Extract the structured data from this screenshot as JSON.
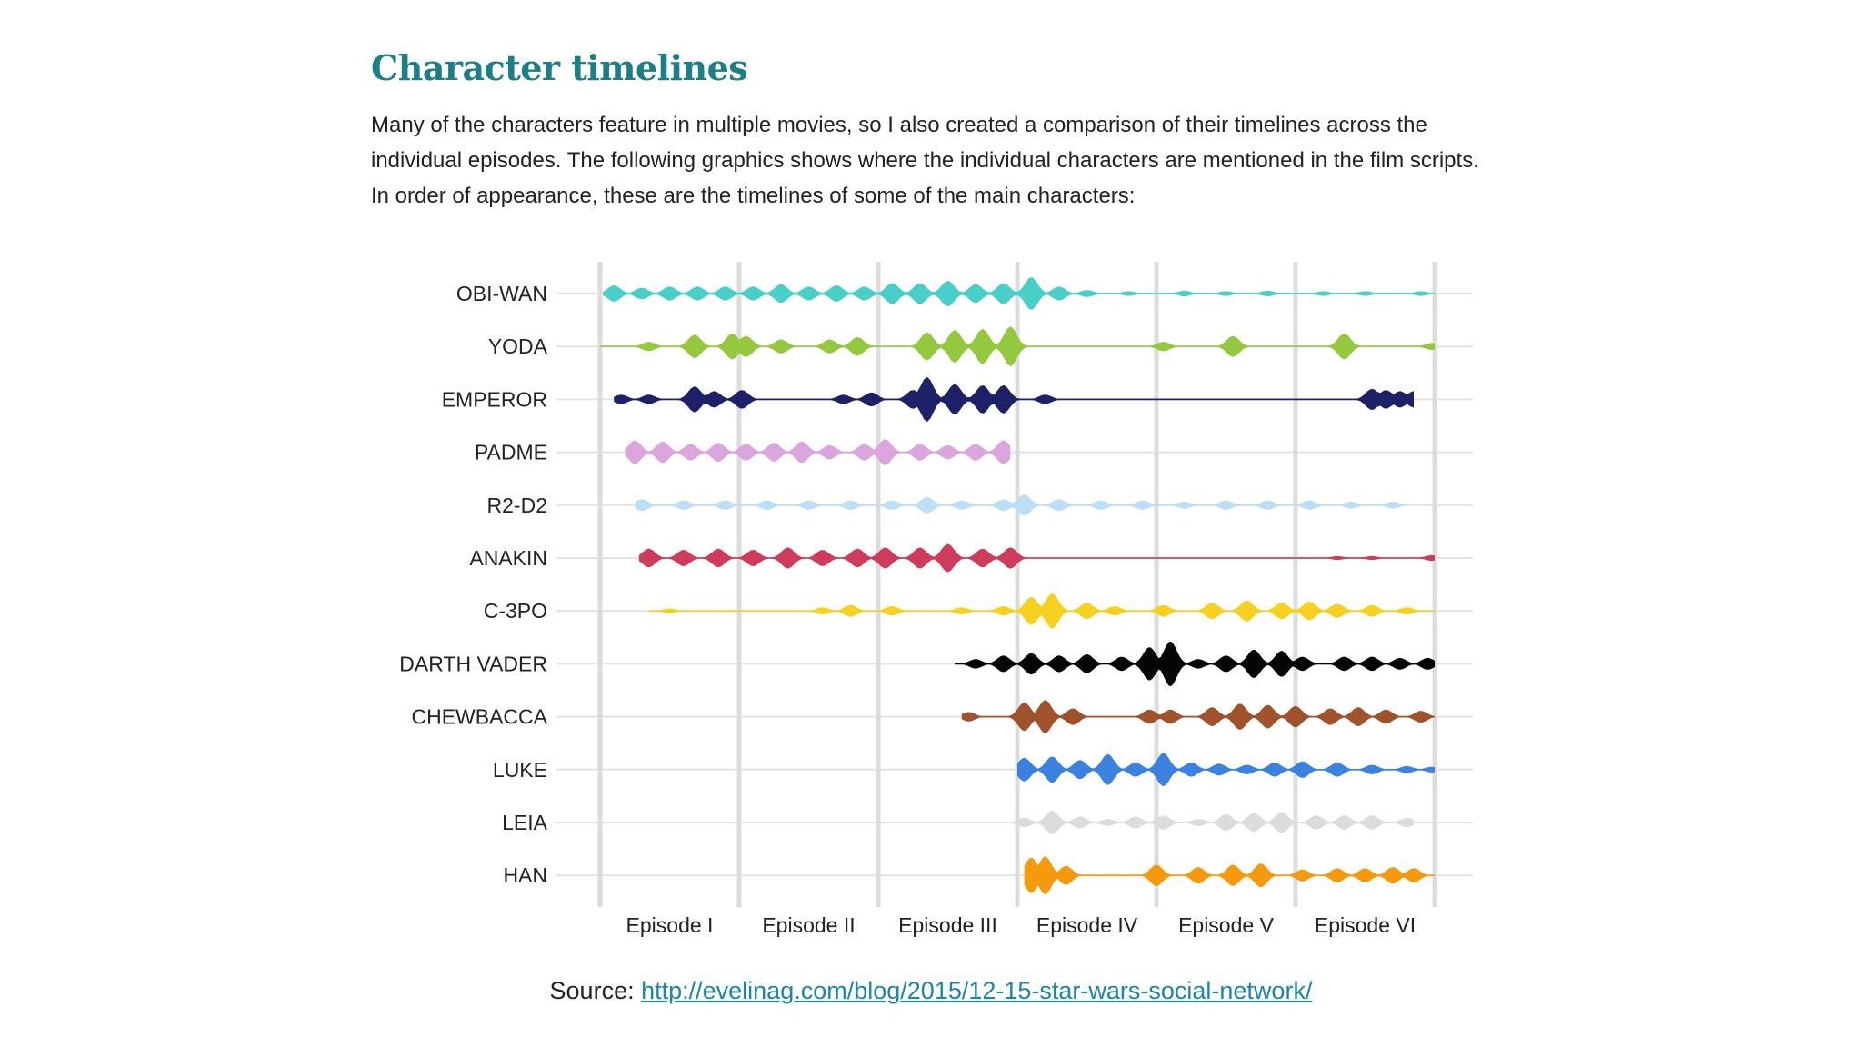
{
  "article": {
    "heading": "Character timelines",
    "intro_lines": [
      "Many of the characters feature in multiple movies, so I also created a comparison of their timelines across the",
      "individual episodes. The following graphics shows where the individual characters are mentioned in the film scripts.",
      "In order of appearance, these are the timelines of some of the main characters:"
    ]
  },
  "source": {
    "prefix": "Source: ",
    "link_text": "http://evelinag.com/blog/2015/12-15-star-wars-social-network/"
  },
  "chart_data": {
    "type": "violin-timeline",
    "title": "",
    "xlabel": "",
    "ylabel": "",
    "x_unit": "episode position (0 = start of Episode I, 6 = end of Episode VI)",
    "xlim": [
      0,
      6
    ],
    "episodes": [
      "Episode I",
      "Episode II",
      "Episode III",
      "Episode IV",
      "Episode V",
      "Episode VI"
    ],
    "grid": "vertical episode boundaries and horizontal character baselines",
    "series": [
      {
        "name": "OBI-WAN",
        "color": "#48cfc9",
        "start": 0.02,
        "end": 6.0,
        "x": [
          0.1,
          0.3,
          0.5,
          0.7,
          0.9,
          1.1,
          1.3,
          1.5,
          1.7,
          1.9,
          2.1,
          2.3,
          2.5,
          2.7,
          2.9,
          3.1,
          3.3,
          3.5,
          3.8,
          4.2,
          4.5,
          4.8,
          5.2,
          5.5,
          5.9
        ],
        "intensity": [
          0.35,
          0.25,
          0.3,
          0.3,
          0.3,
          0.3,
          0.4,
          0.3,
          0.35,
          0.3,
          0.45,
          0.45,
          0.55,
          0.4,
          0.45,
          0.7,
          0.3,
          0.15,
          0.1,
          0.12,
          0.1,
          0.12,
          0.1,
          0.1,
          0.1
        ]
      },
      {
        "name": "YODA",
        "color": "#94c93f",
        "start": 0.0,
        "end": 6.0,
        "x": [
          0.35,
          0.68,
          0.95,
          1.05,
          1.3,
          1.65,
          1.85,
          2.35,
          2.55,
          2.75,
          2.95,
          4.05,
          4.55,
          5.35,
          5.98
        ],
        "intensity": [
          0.2,
          0.5,
          0.55,
          0.45,
          0.3,
          0.3,
          0.4,
          0.6,
          0.7,
          0.75,
          0.85,
          0.2,
          0.45,
          0.55,
          0.15
        ]
      },
      {
        "name": "EMPEROR",
        "color": "#1e2068",
        "start": 0.1,
        "end": 5.85,
        "x": [
          0.15,
          0.35,
          0.68,
          0.82,
          1.02,
          1.75,
          1.95,
          2.25,
          2.35,
          2.55,
          2.75,
          2.9,
          3.2,
          5.55,
          5.65,
          5.75,
          5.85
        ],
        "intensity": [
          0.2,
          0.2,
          0.55,
          0.35,
          0.4,
          0.2,
          0.3,
          0.4,
          0.95,
          0.65,
          0.6,
          0.6,
          0.2,
          0.45,
          0.4,
          0.35,
          0.35
        ]
      },
      {
        "name": "PADME",
        "color": "#dba6de",
        "start": 0.18,
        "end": 2.95,
        "x": [
          0.25,
          0.45,
          0.65,
          0.85,
          1.05,
          1.25,
          1.45,
          1.65,
          1.9,
          2.05,
          2.3,
          2.5,
          2.7,
          2.9
        ],
        "intensity": [
          0.5,
          0.45,
          0.35,
          0.4,
          0.35,
          0.4,
          0.45,
          0.3,
          0.35,
          0.55,
          0.35,
          0.3,
          0.35,
          0.5
        ]
      },
      {
        "name": "R2-D2",
        "color": "#bddff5",
        "start": 0.25,
        "end": 5.8,
        "x": [
          0.3,
          0.6,
          0.9,
          1.2,
          1.5,
          1.8,
          2.1,
          2.35,
          2.6,
          2.9,
          3.05,
          3.3,
          3.6,
          3.9,
          4.2,
          4.5,
          4.8,
          5.1,
          5.4,
          5.7
        ],
        "intensity": [
          0.25,
          0.2,
          0.2,
          0.2,
          0.2,
          0.2,
          0.2,
          0.35,
          0.2,
          0.25,
          0.45,
          0.25,
          0.2,
          0.2,
          0.15,
          0.2,
          0.2,
          0.2,
          0.15,
          0.15
        ]
      },
      {
        "name": "ANAKIN",
        "color": "#cf3b5b",
        "start": 0.28,
        "end": 6.0,
        "x": [
          0.35,
          0.6,
          0.85,
          1.1,
          1.35,
          1.6,
          1.85,
          2.05,
          2.3,
          2.5,
          2.75,
          2.95,
          5.3,
          5.55,
          5.98
        ],
        "intensity": [
          0.4,
          0.35,
          0.4,
          0.35,
          0.45,
          0.35,
          0.4,
          0.45,
          0.45,
          0.6,
          0.4,
          0.45,
          0.08,
          0.08,
          0.12
        ]
      },
      {
        "name": "C-3PO",
        "color": "#f7d11f",
        "start": 0.35,
        "end": 6.0,
        "x": [
          0.5,
          1.6,
          1.8,
          2.1,
          2.6,
          2.9,
          3.1,
          3.25,
          3.5,
          3.7,
          4.05,
          4.4,
          4.65,
          4.9,
          5.1,
          5.3,
          5.55,
          5.8
        ],
        "intensity": [
          0.1,
          0.15,
          0.25,
          0.2,
          0.15,
          0.2,
          0.6,
          0.75,
          0.35,
          0.2,
          0.25,
          0.35,
          0.45,
          0.35,
          0.4,
          0.3,
          0.25,
          0.15
        ]
      },
      {
        "name": "DARTH VADER",
        "color": "#050505",
        "start": 2.55,
        "end": 6.0,
        "x": [
          2.7,
          2.9,
          3.1,
          3.3,
          3.5,
          3.75,
          3.95,
          4.1,
          4.3,
          4.5,
          4.7,
          4.9,
          5.05,
          5.35,
          5.55,
          5.75,
          5.95
        ],
        "intensity": [
          0.2,
          0.35,
          0.45,
          0.35,
          0.4,
          0.3,
          0.7,
          0.95,
          0.2,
          0.35,
          0.6,
          0.55,
          0.3,
          0.3,
          0.3,
          0.25,
          0.25
        ]
      },
      {
        "name": "CHEWBACCA",
        "color": "#a0522d",
        "start": 2.6,
        "end": 6.0,
        "x": [
          2.65,
          3.05,
          3.2,
          3.4,
          3.95,
          4.1,
          4.4,
          4.6,
          4.8,
          5.0,
          5.25,
          5.45,
          5.65,
          5.9
        ],
        "intensity": [
          0.2,
          0.6,
          0.7,
          0.35,
          0.3,
          0.3,
          0.4,
          0.55,
          0.5,
          0.45,
          0.35,
          0.4,
          0.3,
          0.25
        ]
      },
      {
        "name": "LUKE",
        "color": "#3b82e0",
        "start": 3.0,
        "end": 6.0,
        "x": [
          3.05,
          3.25,
          3.45,
          3.65,
          3.85,
          4.05,
          4.25,
          4.45,
          4.65,
          4.85,
          5.05,
          5.3,
          5.55,
          5.8,
          5.98
        ],
        "intensity": [
          0.5,
          0.55,
          0.4,
          0.65,
          0.3,
          0.7,
          0.3,
          0.25,
          0.2,
          0.3,
          0.35,
          0.3,
          0.2,
          0.15,
          0.12
        ]
      },
      {
        "name": "LEIA",
        "color": "#dcdcdc",
        "start": 2.95,
        "end": 5.85,
        "x": [
          3.05,
          3.25,
          3.45,
          3.65,
          3.85,
          4.05,
          4.3,
          4.5,
          4.7,
          4.9,
          5.15,
          5.35,
          5.55,
          5.8
        ],
        "intensity": [
          0.2,
          0.5,
          0.25,
          0.15,
          0.25,
          0.3,
          0.15,
          0.35,
          0.4,
          0.45,
          0.3,
          0.3,
          0.3,
          0.2
        ]
      },
      {
        "name": "HAN",
        "color": "#f59a0c",
        "start": 3.05,
        "end": 6.0,
        "x": [
          3.1,
          3.2,
          3.35,
          4.0,
          4.3,
          4.55,
          4.75,
          5.05,
          5.3,
          5.5,
          5.7,
          5.85
        ],
        "intensity": [
          0.75,
          0.8,
          0.4,
          0.45,
          0.35,
          0.45,
          0.5,
          0.25,
          0.3,
          0.3,
          0.35,
          0.3
        ]
      }
    ]
  }
}
